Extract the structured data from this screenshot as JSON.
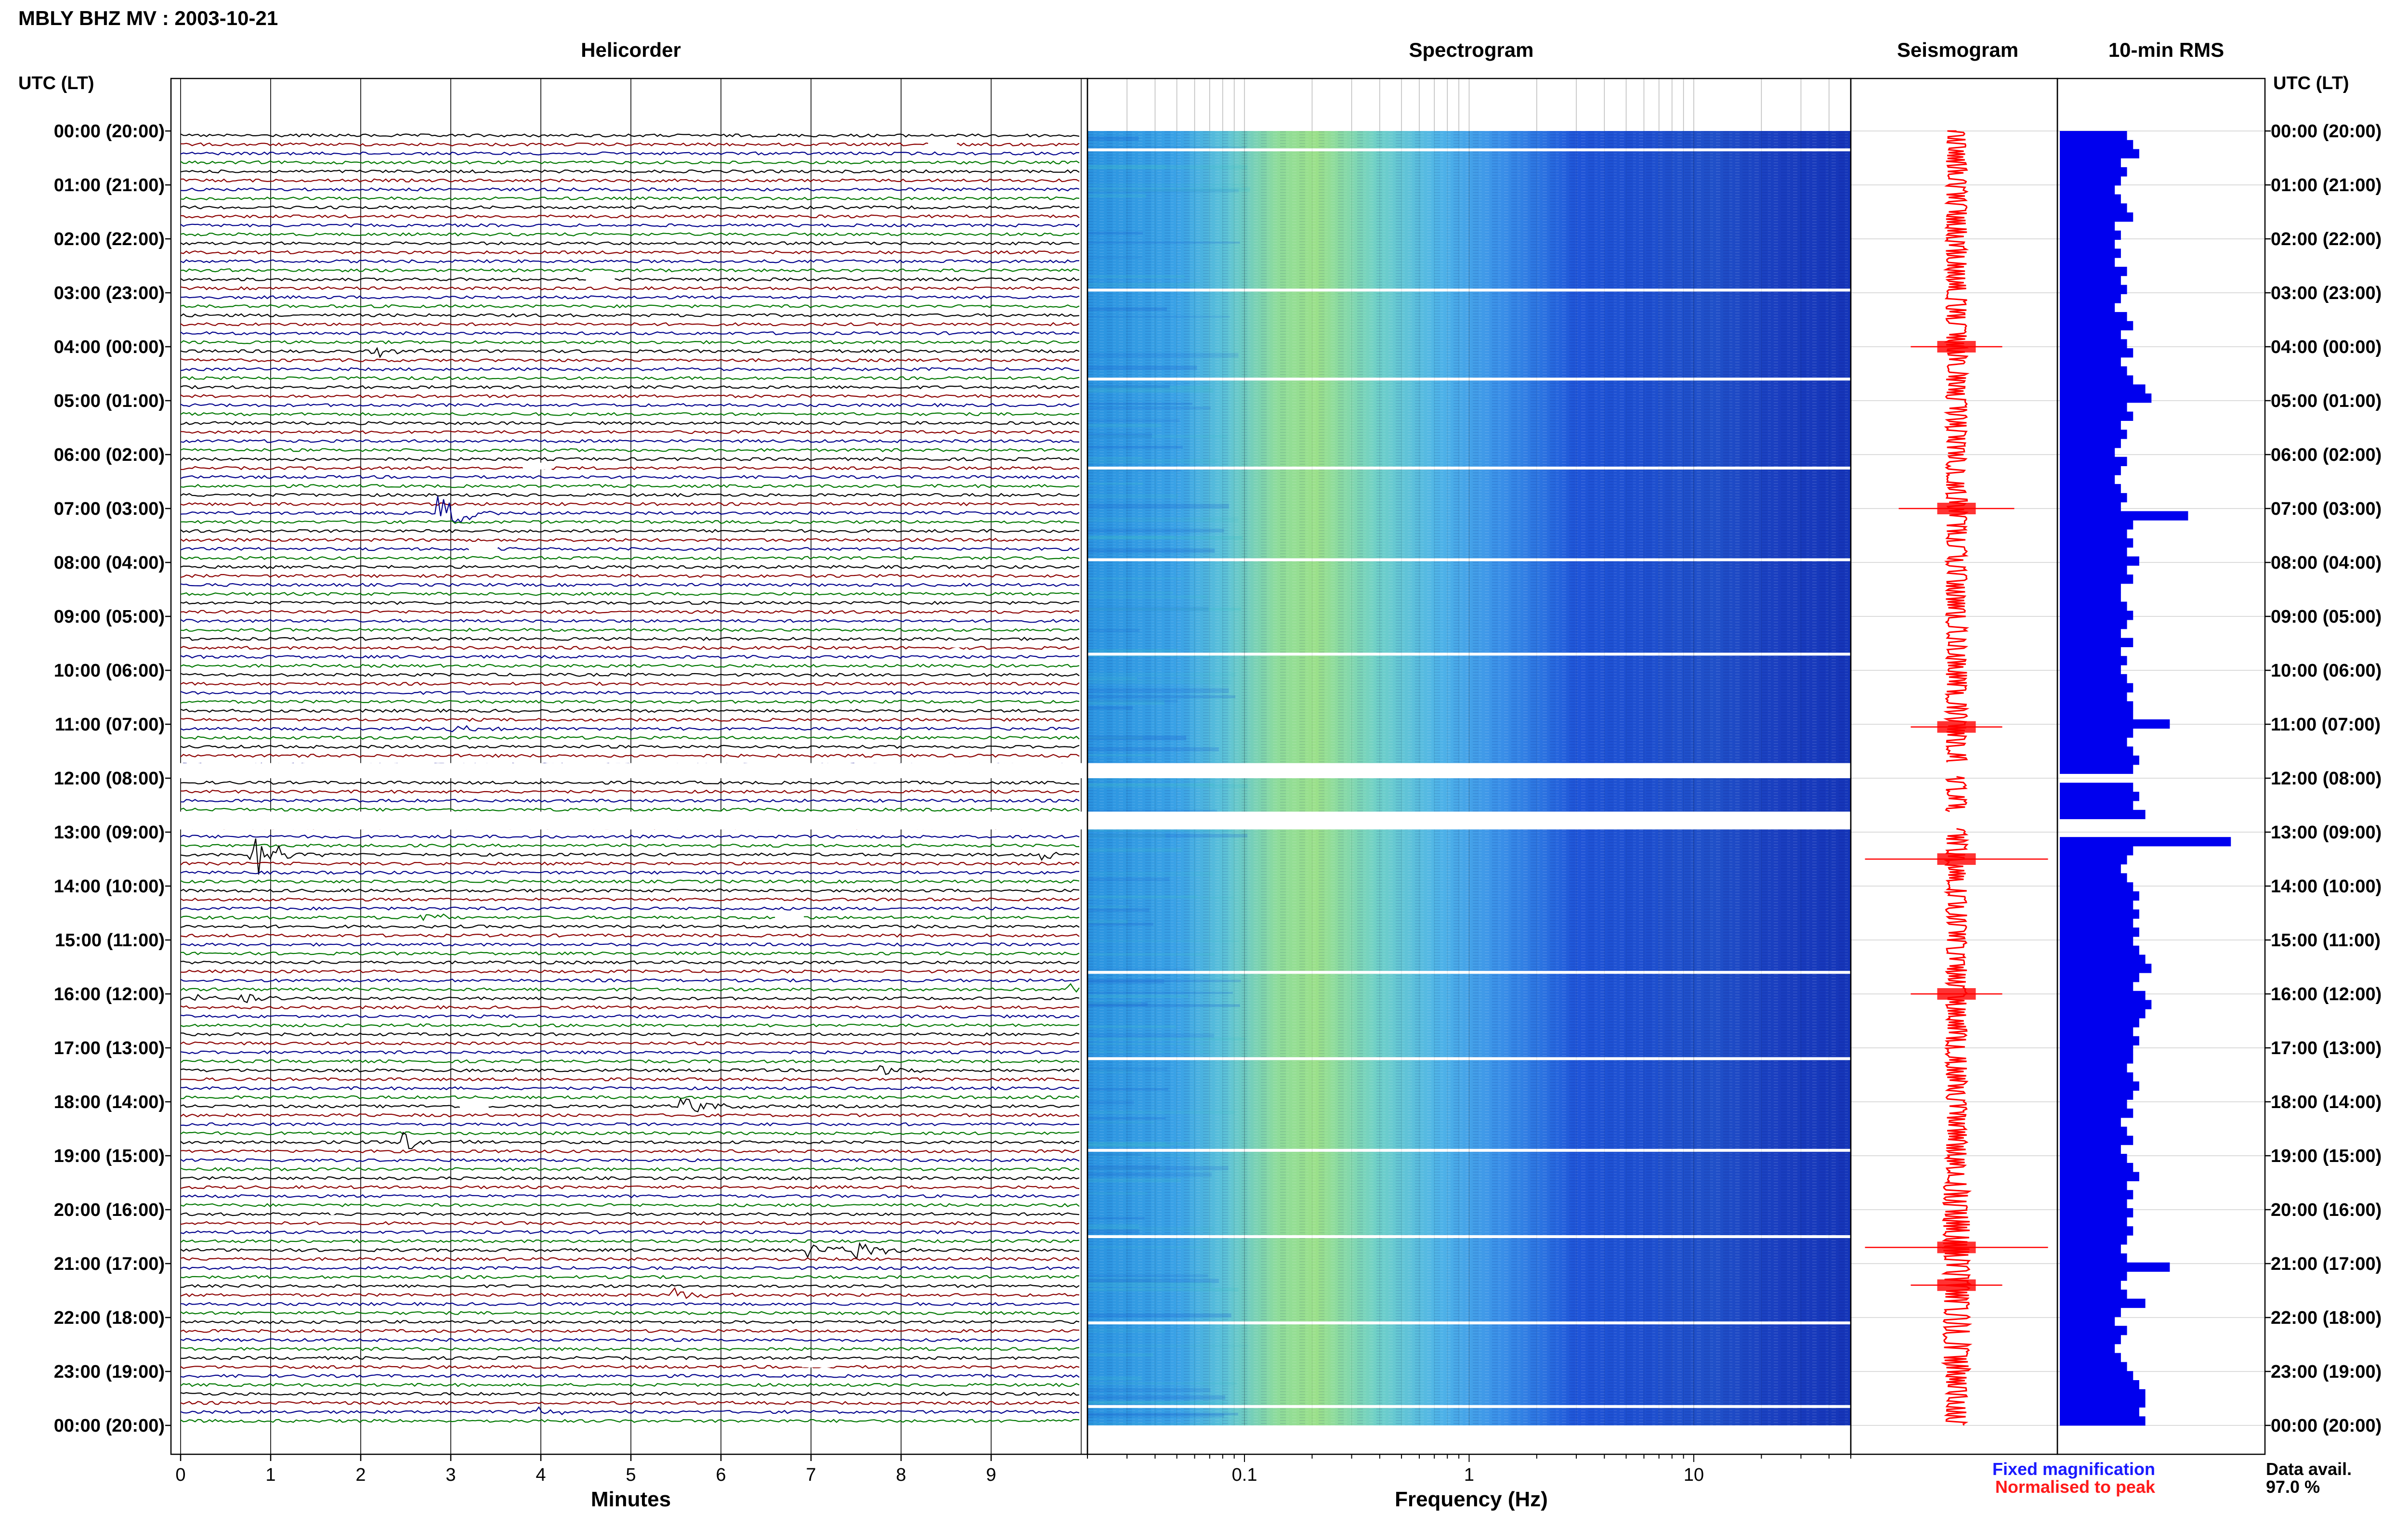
{
  "header": {
    "station_title": "MBLY BHZ MV : 2003-10-21",
    "utc_lt_label": "UTC (LT)"
  },
  "panels": {
    "helicorder_title": "Helicorder",
    "spectrogram_title": "Spectrogram",
    "seismogram_title": "Seismogram",
    "rms_title": "10-min RMS"
  },
  "legend": {
    "fixed_magnification": "Fixed magnification",
    "normalised_to_peak": "Normalised to peak",
    "fixed_color": "#1a1aff",
    "normalised_color": "#ff1a1a"
  },
  "data_availability": {
    "label": "Data avail.",
    "value": "97.0 %"
  },
  "colors": {
    "trace_cycle": [
      "#000000",
      "#8b0000",
      "#00008b",
      "#007700"
    ],
    "seismogram": "#ff0000",
    "rms_bar": "#0000ee"
  },
  "chart_data": {
    "type": "heatmap",
    "time_labels": [
      "00:00 (20:00)",
      "01:00 (21:00)",
      "02:00 (22:00)",
      "03:00 (23:00)",
      "04:00 (00:00)",
      "05:00 (01:00)",
      "06:00 (02:00)",
      "07:00 (03:00)",
      "08:00 (04:00)",
      "09:00 (05:00)",
      "10:00 (06:00)",
      "11:00 (07:00)",
      "12:00 (08:00)",
      "13:00 (09:00)",
      "14:00 (10:00)",
      "15:00 (11:00)",
      "16:00 (12:00)",
      "17:00 (13:00)",
      "18:00 (14:00)",
      "19:00 (15:00)",
      "20:00 (16:00)",
      "21:00 (17:00)",
      "22:00 (18:00)",
      "23:00 (19:00)",
      "00:00 (20:00)"
    ],
    "helicorder": {
      "xlabel": "Minutes",
      "xticks": [
        "0",
        "1",
        "2",
        "3",
        "4",
        "5",
        "6",
        "7",
        "8",
        "9"
      ],
      "xlim": [
        0,
        10
      ],
      "rows_per_hour": 6,
      "gap_hours": [
        12
      ],
      "events": [
        {
          "hour": 4.05,
          "minute": 2.15,
          "amp": 0.6
        },
        {
          "hour": 7.0,
          "minute": 2.9,
          "amp": 2.0
        },
        {
          "hour": 11.0,
          "minute": 3.0,
          "amp": 0.5
        },
        {
          "hour": 13.35,
          "minute": 0.8,
          "amp": 2.6
        },
        {
          "hour": 13.35,
          "minute": 9.6,
          "amp": 0.5
        },
        {
          "hour": 14.5,
          "minute": 2.7,
          "amp": 0.5
        },
        {
          "hour": 15.85,
          "minute": 9.8,
          "amp": 0.7
        },
        {
          "hour": 16.0,
          "minute": 0.2,
          "amp": 0.5
        },
        {
          "hour": 16.0,
          "minute": 0.7,
          "amp": 0.5
        },
        {
          "hour": 17.35,
          "minute": 7.8,
          "amp": 0.5
        },
        {
          "hour": 18.0,
          "minute": 5.6,
          "amp": 1.0
        },
        {
          "hour": 18.65,
          "minute": 2.5,
          "amp": 0.9
        },
        {
          "hour": 20.6,
          "minute": 7.0,
          "amp": 1.0
        },
        {
          "hour": 20.6,
          "minute": 7.5,
          "amp": 1.2
        },
        {
          "hour": 21.5,
          "minute": 5.5,
          "amp": 0.8
        },
        {
          "hour": 23.7,
          "minute": 4.0,
          "amp": 0.5
        }
      ]
    },
    "spectrogram": {
      "xlabel": "Frequency (Hz)",
      "xscale": "log",
      "xlim": [
        0.02,
        50
      ],
      "xticks": [
        "0.1",
        "1",
        "10"
      ]
    },
    "seismogram": {
      "spike_hours": [
        4.0,
        7.0,
        11.05,
        13.5,
        16.0,
        20.7,
        21.4
      ]
    },
    "rms": {
      "title": "10-min RMS",
      "values": [
        0.55,
        0.6,
        0.65,
        0.5,
        0.55,
        0.5,
        0.45,
        0.5,
        0.55,
        0.6,
        0.45,
        0.5,
        0.45,
        0.5,
        0.45,
        0.55,
        0.5,
        0.55,
        0.5,
        0.45,
        0.55,
        0.6,
        0.5,
        0.55,
        0.6,
        0.5,
        0.55,
        0.6,
        0.7,
        0.75,
        0.55,
        0.6,
        0.5,
        0.55,
        0.5,
        0.45,
        0.55,
        0.5,
        0.45,
        0.5,
        0.55,
        0.5,
        1.05,
        0.6,
        0.55,
        0.6,
        0.55,
        0.65,
        0.55,
        0.6,
        0.5,
        0.5,
        0.55,
        0.6,
        0.55,
        0.5,
        0.6,
        0.5,
        0.55,
        0.5,
        0.55,
        0.6,
        0.55,
        0.6,
        0.6,
        0.9,
        0.6,
        0.55,
        0.6,
        0.65,
        0.6,
        0.6,
        0.6,
        0.65,
        0.6,
        0.7,
        0.6,
        0.55,
        1.4,
        0.6,
        0.55,
        0.5,
        0.55,
        0.6,
        0.65,
        0.6,
        0.65,
        0.6,
        0.65,
        0.6,
        0.65,
        0.7,
        0.75,
        0.65,
        0.6,
        0.7,
        0.75,
        0.7,
        0.65,
        0.6,
        0.65,
        0.6,
        0.6,
        0.55,
        0.6,
        0.65,
        0.6,
        0.55,
        0.6,
        0.5,
        0.55,
        0.6,
        0.5,
        0.55,
        0.6,
        0.65,
        0.55,
        0.6,
        0.55,
        0.6,
        0.55,
        0.6,
        0.55,
        0.5,
        0.55,
        0.9,
        0.55,
        0.5,
        0.55,
        0.7,
        0.5,
        0.45,
        0.55,
        0.5,
        0.45,
        0.5,
        0.55,
        0.6,
        0.65,
        0.7,
        0.7,
        0.65,
        0.7
      ]
    }
  }
}
